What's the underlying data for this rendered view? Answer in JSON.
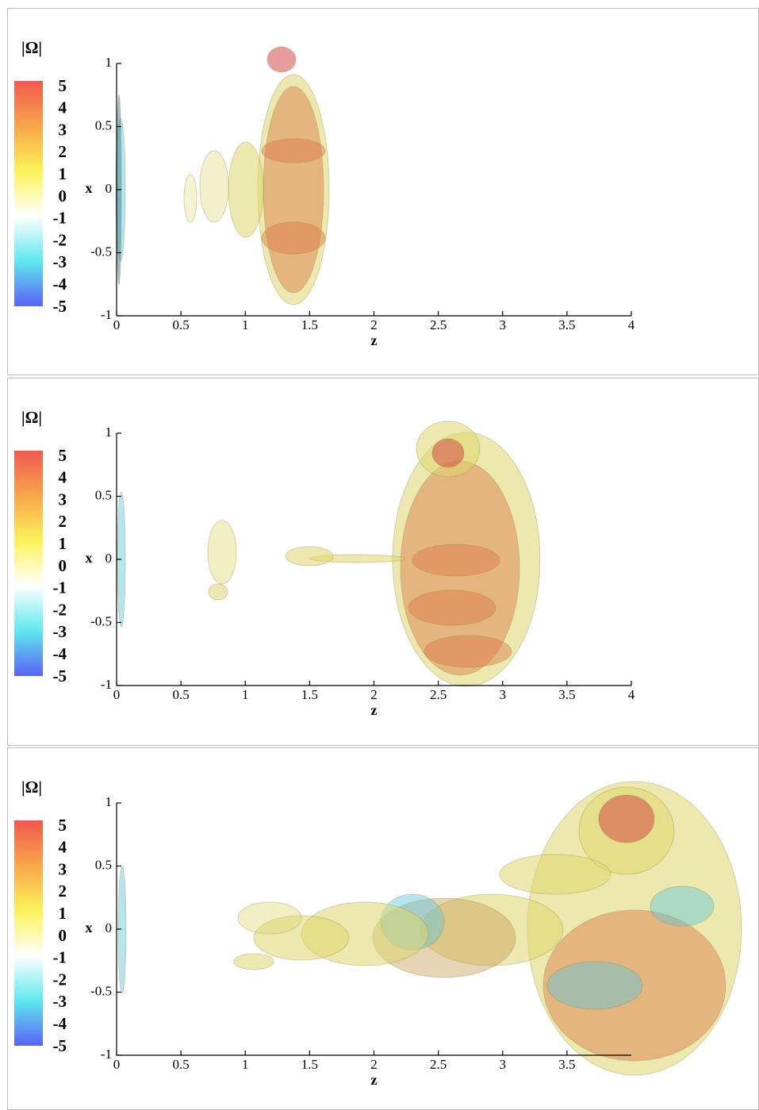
{
  "chart_data": [
    {
      "type": "isosurface",
      "colorbar_title": "|Ω|",
      "clim": [
        -5,
        5
      ],
      "colorbar_ticks": [
        5,
        4,
        3,
        2,
        1,
        0,
        -1,
        -2,
        -3,
        -4,
        -5
      ],
      "colormap": [
        "#f0584f",
        "#f8a64a",
        "#fbf35a",
        "#ffffff",
        "#5fe8ee",
        "#5a62f5"
      ],
      "xlabel": "z",
      "ylabel": "x",
      "xlim": [
        0,
        4
      ],
      "xticks": [
        0,
        0.5,
        1,
        1.5,
        2,
        2.5,
        3,
        3.5,
        4
      ],
      "ylim": [
        -1,
        1
      ],
      "yticks": [
        -1,
        -0.5,
        0,
        0.5,
        1
      ]
    },
    {
      "type": "isosurface",
      "colorbar_title": "|Ω|",
      "clim": [
        -5,
        5
      ],
      "colorbar_ticks": [
        5,
        4,
        3,
        2,
        1,
        0,
        -1,
        -2,
        -3,
        -4,
        -5
      ],
      "colormap": [
        "#f0584f",
        "#f8a64a",
        "#fbf35a",
        "#ffffff",
        "#5fe8ee",
        "#5a62f5"
      ],
      "xlabel": "z",
      "ylabel": "x",
      "xlim": [
        0,
        4
      ],
      "xticks": [
        0,
        0.5,
        1,
        1.5,
        2,
        2.5,
        3,
        3.5,
        4
      ],
      "ylim": [
        -1,
        1
      ],
      "yticks": [
        -1,
        -0.5,
        0,
        0.5,
        1
      ]
    },
    {
      "type": "isosurface",
      "colorbar_title": "|Ω|",
      "clim": [
        -5,
        5
      ],
      "colorbar_ticks": [
        5,
        4,
        3,
        2,
        1,
        0,
        -1,
        -2,
        -3,
        -4,
        -5
      ],
      "colormap": [
        "#f0584f",
        "#f8a64a",
        "#fbf35a",
        "#ffffff",
        "#5fe8ee",
        "#5a62f5"
      ],
      "xlabel": "z",
      "ylabel": "x",
      "xlim": [
        0,
        4
      ],
      "xticks": [
        0,
        0.5,
        1,
        1.5,
        2,
        2.5,
        3,
        3.5
      ],
      "ylim": [
        -1,
        1
      ],
      "yticks": [
        -1,
        -0.5,
        0,
        0.5,
        1
      ]
    }
  ]
}
